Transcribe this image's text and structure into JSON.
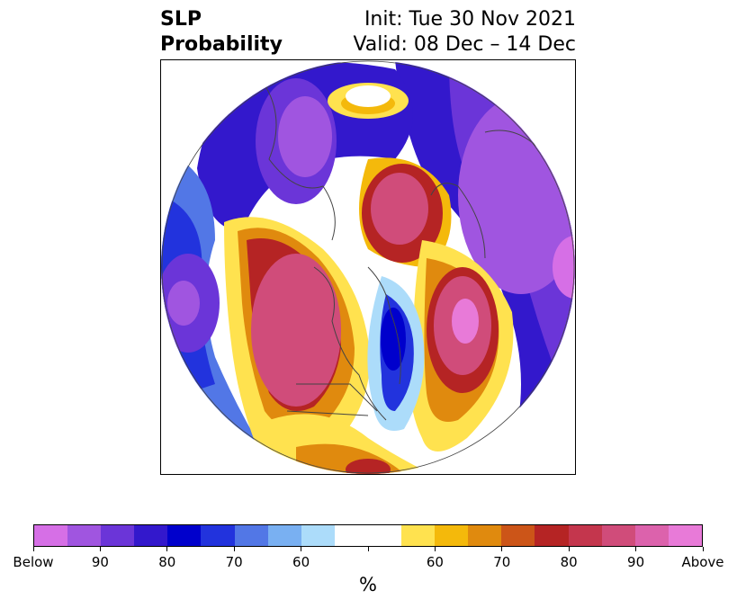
{
  "title": {
    "left_line1": "SLP",
    "left_line2": "Probability",
    "right_line1": "Init: Tue 30 Nov 2021",
    "right_line2": "Valid: 08 Dec – 14 Dec"
  },
  "map": {
    "projection": "north-polar-stereographic",
    "features": [
      "coastlines",
      "country-borders",
      "us-state-borders"
    ],
    "anomaly_regions": [
      {
        "name": "north-pacific-below",
        "category": "below",
        "peak_percent": 90
      },
      {
        "name": "alaska-western-canada-above",
        "category": "above",
        "peak_percent": 90
      },
      {
        "name": "north-atlantic-above",
        "category": "above",
        "peak_percent": 90
      },
      {
        "name": "arctic-siberia-above",
        "category": "above",
        "peak_percent": 80
      },
      {
        "name": "eastern-canada-below",
        "category": "below",
        "peak_percent": 70
      },
      {
        "name": "eurasia-below",
        "category": "below",
        "peak_percent": 90
      }
    ]
  },
  "colorbar": {
    "unit_label": "%",
    "colors": [
      "#d66fe6",
      "#a055e0",
      "#6b35d8",
      "#3318cc",
      "#0000cc",
      "#2233dd",
      "#5277e6",
      "#79b0f2",
      "#acdcfa",
      "#ffffff",
      "#ffffff",
      "#ffe24f",
      "#f4b90b",
      "#e08a0e",
      "#cc5518",
      "#b52424",
      "#c4364d",
      "#d04c7a",
      "#dc62ac",
      "#e87ad8"
    ],
    "tick_labels": [
      "Below",
      "90",
      "80",
      "70",
      "60",
      "",
      "60",
      "70",
      "80",
      "90",
      "Above"
    ]
  }
}
